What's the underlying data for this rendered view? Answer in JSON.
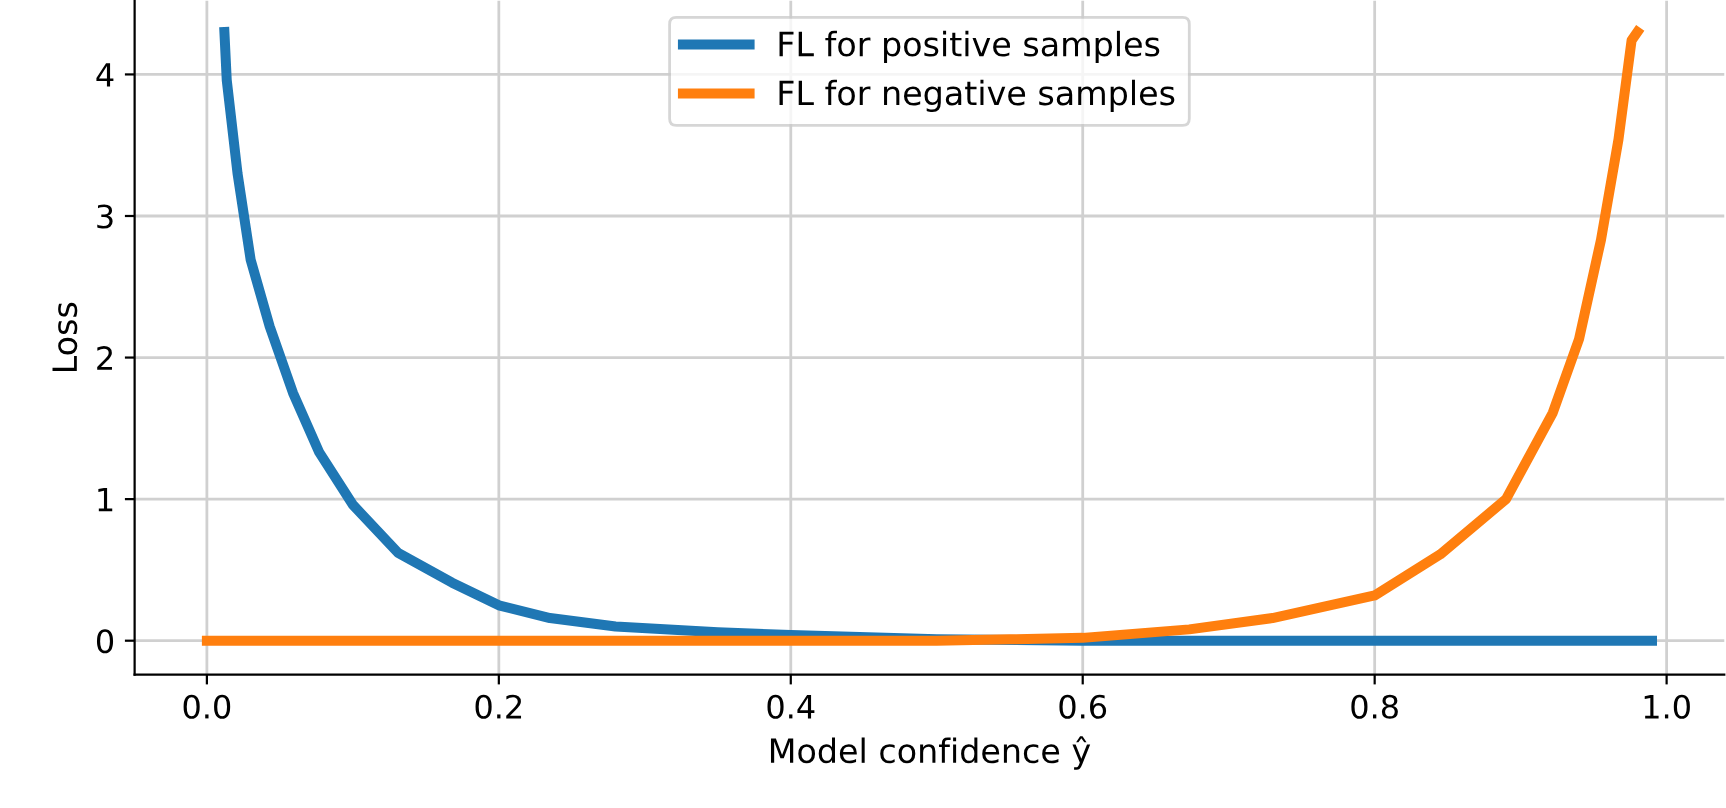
{
  "chart_data": {
    "type": "line",
    "xlabel": "Model confidence ŷ",
    "ylabel": "Loss",
    "xlim": [
      -0.0495,
      1.0395
    ],
    "ylim": [
      -0.24,
      4.52
    ],
    "xticks": [
      {
        "value": 0,
        "label": "0.0"
      },
      0.2,
      0.4,
      0.6,
      0.8,
      {
        "value": 1,
        "label": "1.0"
      }
    ],
    "yticks": [
      0,
      1,
      2,
      3,
      4
    ],
    "grid": true,
    "legend": "top",
    "line_style": "solid",
    "marker": "none",
    "series": [
      {
        "name": "FL for positive samples",
        "color": "#1f77b4",
        "x": [
          0.012,
          0.0136,
          0.021,
          0.03,
          0.043,
          0.059,
          0.077,
          0.1,
          0.131,
          0.168,
          0.2,
          0.235,
          0.28,
          0.35,
          0.4,
          0.5,
          0.6,
          0.7,
          0.8,
          0.9,
          0.99
        ],
        "values": [
          4.3,
          3.96,
          3.3,
          2.69,
          2.22,
          1.75,
          1.33,
          0.96,
          0.62,
          0.41,
          0.25,
          0.16,
          0.1,
          0.06,
          0.04,
          0.01,
          0,
          0,
          0,
          0,
          0
        ]
      },
      {
        "name": "FL for negative samples",
        "color": "#ff7f0e",
        "x": [
          0,
          0.1,
          0.2,
          0.3,
          0.4,
          0.5,
          0.55,
          0.6,
          0.673,
          0.73,
          0.8,
          0.845,
          0.89,
          0.922,
          0.94,
          0.955,
          0.967,
          0.976,
          0.98
        ],
        "values": [
          0,
          0,
          0,
          0,
          0,
          0,
          0.01,
          0.02,
          0.08,
          0.16,
          0.32,
          0.61,
          1.0,
          1.61,
          2.13,
          2.83,
          3.54,
          4.24,
          4.3
        ]
      }
    ]
  }
}
